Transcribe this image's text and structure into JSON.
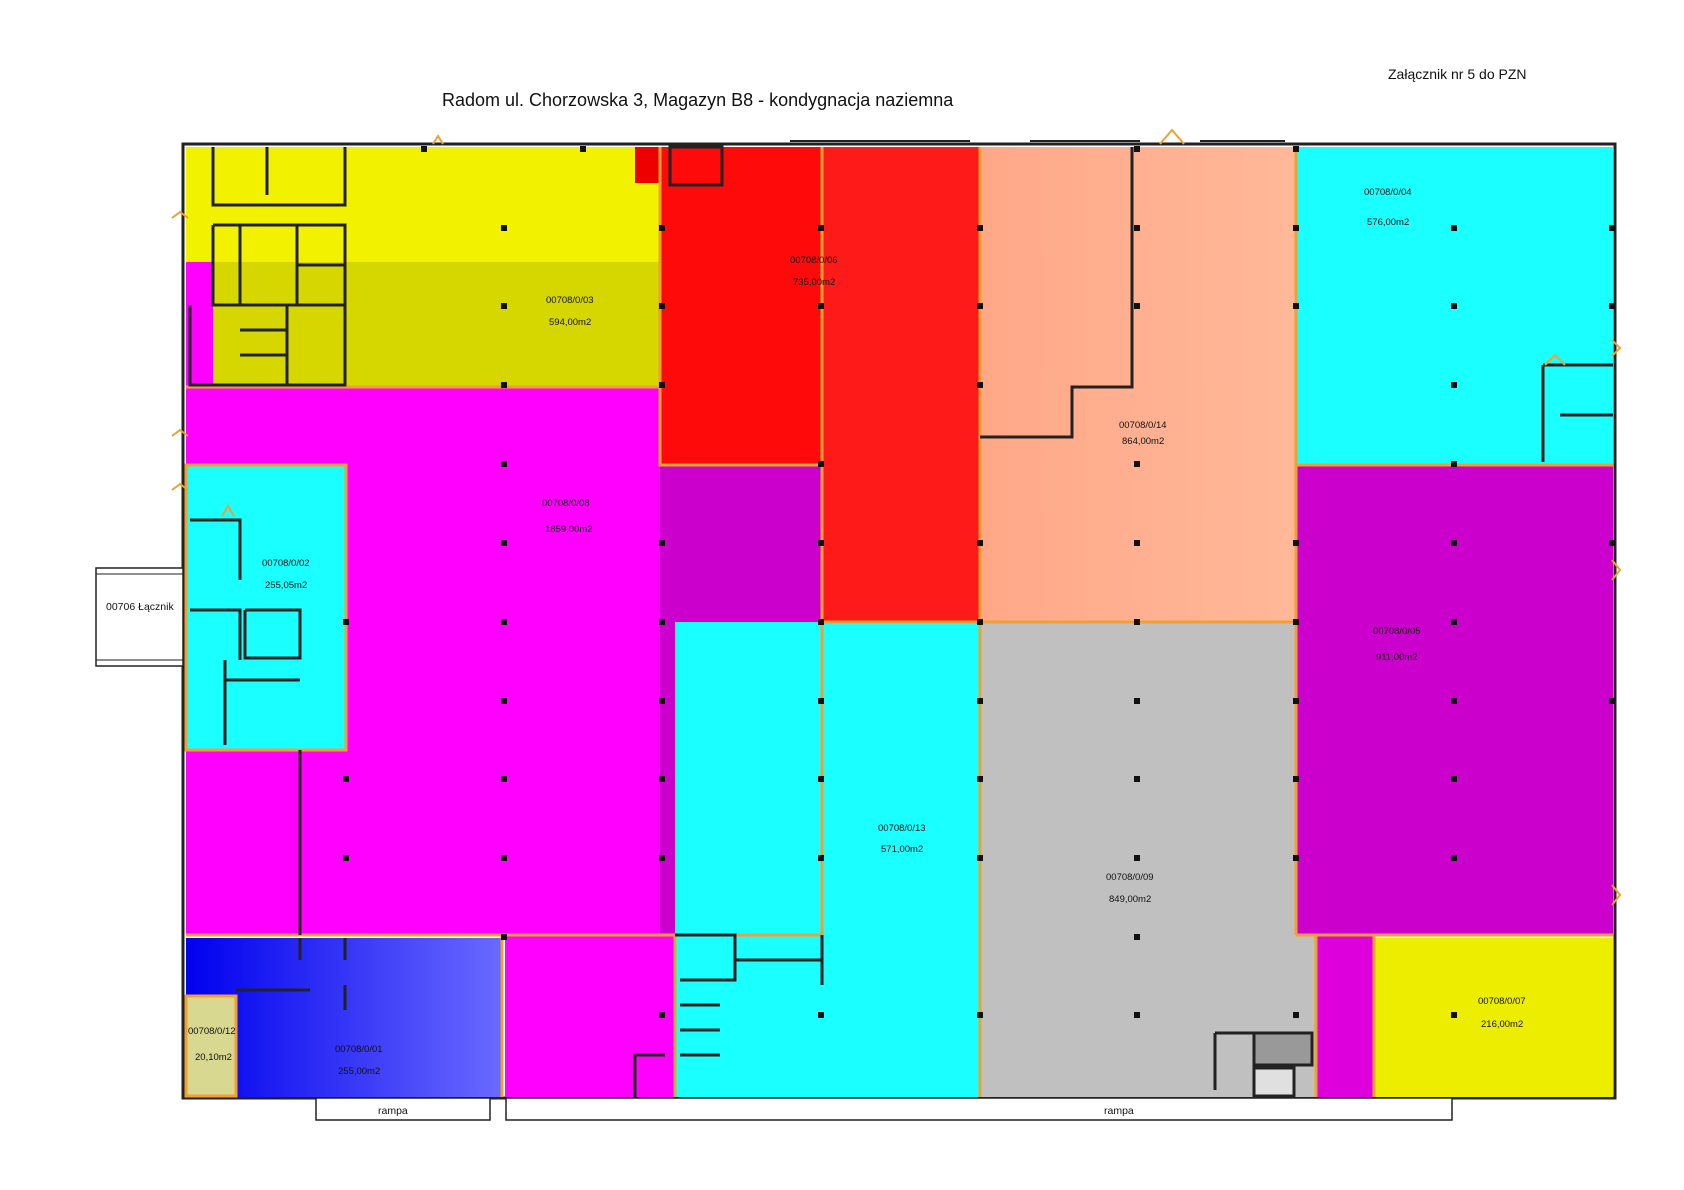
{
  "header": {
    "title": "Radom ul. Chorzowska 3, Magazyn B8 - kondygnacja naziemna",
    "attachment": "Załącznik nr 5 do PZN"
  },
  "units": [
    {
      "id": "00708/0/01",
      "area": "255,00m2",
      "color": "#3333ff"
    },
    {
      "id": "00708/0/02",
      "area": "255,05m2",
      "color": "#1affff"
    },
    {
      "id": "00708/0/03",
      "area": "594,00m2",
      "color": "#e8e800"
    },
    {
      "id": "00708/0/04",
      "area": "576,00m2",
      "color": "#1affff"
    },
    {
      "id": "00708/0/05",
      "area": "911,00m2",
      "color": "#cc00cc"
    },
    {
      "id": "00708/0/06",
      "area": "735,00m2",
      "color": "#ff1a1a"
    },
    {
      "id": "00708/0/07",
      "area": "216,00m2",
      "color": "#eded00"
    },
    {
      "id": "00708/0/08",
      "area": "1859,00m2",
      "color": "#ff00ff"
    },
    {
      "id": "00708/0/09",
      "area": "849,00m2",
      "color": "#c0c0c0"
    },
    {
      "id": "00708/0/12",
      "area": "20,10m2",
      "color": "#d8d890"
    },
    {
      "id": "00708/0/13",
      "area": "571,00m2",
      "color": "#1affff"
    },
    {
      "id": "00708/0/14",
      "area": "864,00m2",
      "color": "#ffaa88"
    }
  ],
  "connector": {
    "label": "00706 Łącznik"
  },
  "ramps": [
    {
      "label": "rampa"
    },
    {
      "label": "rampa"
    }
  ],
  "colors": {
    "wall": "#222222",
    "door_outline": "#f0a030"
  }
}
